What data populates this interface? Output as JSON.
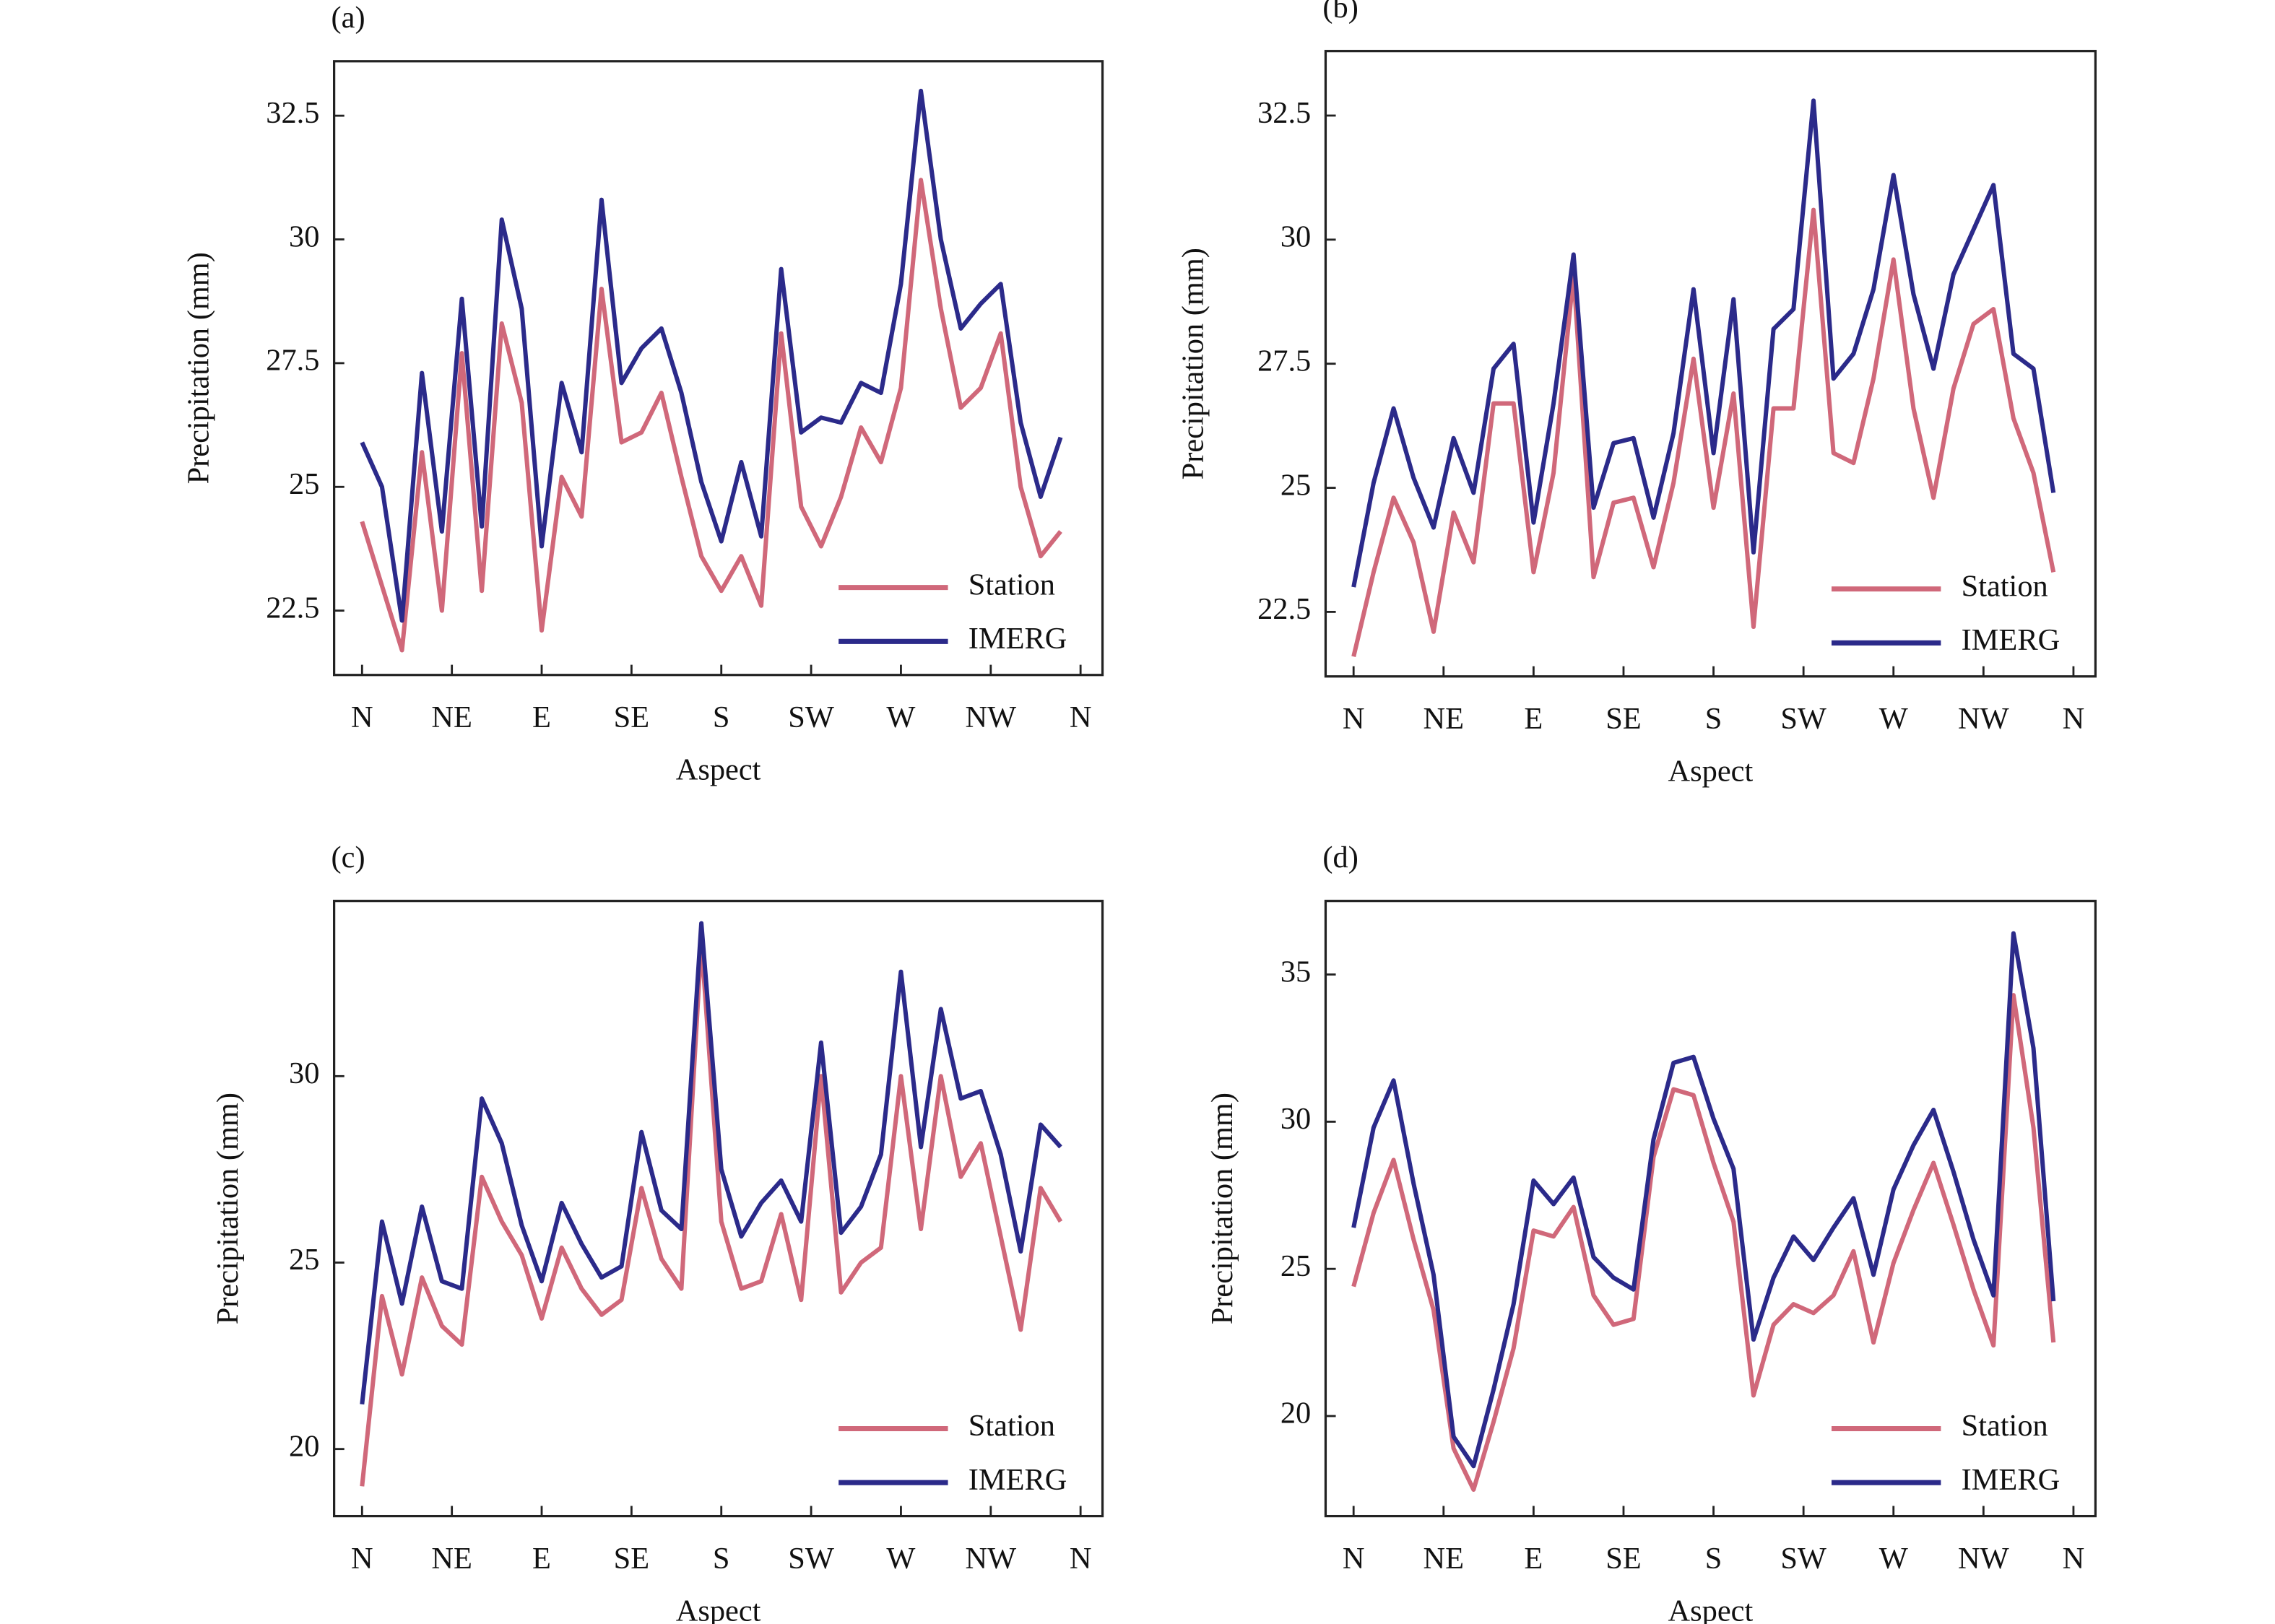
{
  "chart_data": [
    {
      "type": "line",
      "title": "(a)",
      "x_label": "Aspect",
      "y_label": "Precipitation (mm)",
      "legend": "lower right",
      "x": [
        0,
        10,
        20,
        30,
        40,
        50,
        60,
        70,
        80,
        90,
        100,
        110,
        120,
        130,
        140,
        150,
        160,
        170,
        180,
        190,
        200,
        210,
        220,
        230,
        240,
        250,
        260,
        270,
        280,
        290,
        300,
        310,
        320,
        330,
        340,
        350
      ],
      "xlim": [
        -14,
        371
      ],
      "xticks": [
        {
          "value": 0,
          "label": "N"
        },
        {
          "value": 45,
          "label": "NE"
        },
        {
          "value": 90,
          "label": "E"
        },
        {
          "value": 135,
          "label": "SE"
        },
        {
          "value": 180,
          "label": "S"
        },
        {
          "value": 225,
          "label": "SW"
        },
        {
          "value": 270,
          "label": "W"
        },
        {
          "value": 315,
          "label": "NW"
        },
        {
          "value": 360,
          "label": "N"
        }
      ],
      "ylim": [
        21.2,
        33.6
      ],
      "yticks": [
        22.5,
        25.0,
        27.5,
        30.0,
        32.5
      ],
      "series": [
        {
          "name": "Station",
          "color": "#d0687a",
          "values": [
            24.3,
            23.0,
            21.7,
            25.7,
            22.5,
            27.7,
            22.9,
            28.3,
            26.7,
            22.1,
            25.2,
            24.4,
            29.0,
            25.9,
            26.1,
            26.9,
            25.2,
            23.6,
            22.9,
            23.6,
            22.6,
            28.1,
            24.6,
            23.8,
            24.8,
            26.2,
            25.5,
            27.0,
            31.2,
            28.6,
            26.6,
            27.0,
            28.1,
            25.0,
            23.6,
            24.1
          ]
        },
        {
          "name": "IMERG",
          "color": "#2b2a8a",
          "values": [
            25.9,
            25.0,
            22.3,
            27.3,
            24.1,
            28.8,
            24.2,
            30.4,
            28.6,
            23.8,
            27.1,
            25.7,
            30.8,
            27.1,
            27.8,
            28.2,
            26.9,
            25.1,
            23.9,
            25.5,
            24.0,
            29.4,
            26.1,
            26.4,
            26.3,
            27.1,
            26.9,
            29.1,
            33.0,
            30.0,
            28.2,
            28.7,
            29.1,
            26.3,
            24.8,
            26.0
          ]
        }
      ]
    },
    {
      "type": "line",
      "title": "(b)",
      "x_label": "Aspect",
      "y_label": "Precipitation (mm)",
      "legend": "lower right",
      "x": [
        0,
        10,
        20,
        30,
        40,
        50,
        60,
        70,
        80,
        90,
        100,
        110,
        120,
        130,
        140,
        150,
        160,
        170,
        180,
        190,
        200,
        210,
        220,
        230,
        240,
        250,
        260,
        270,
        280,
        290,
        300,
        310,
        320,
        330,
        340,
        350
      ],
      "xlim": [
        -14,
        371
      ],
      "xticks": [
        {
          "value": 0,
          "label": "N"
        },
        {
          "value": 45,
          "label": "NE"
        },
        {
          "value": 90,
          "label": "E"
        },
        {
          "value": 135,
          "label": "SE"
        },
        {
          "value": 180,
          "label": "S"
        },
        {
          "value": 225,
          "label": "SW"
        },
        {
          "value": 270,
          "label": "W"
        },
        {
          "value": 315,
          "label": "NW"
        },
        {
          "value": 360,
          "label": "N"
        }
      ],
      "ylim": [
        21.2,
        33.8
      ],
      "yticks": [
        22.5,
        25.0,
        27.5,
        30.0,
        32.5
      ],
      "series": [
        {
          "name": "Station",
          "color": "#d0687a",
          "values": [
            21.6,
            23.3,
            24.8,
            23.9,
            22.1,
            24.5,
            23.5,
            26.7,
            26.7,
            23.3,
            25.3,
            29.3,
            23.2,
            24.7,
            24.8,
            23.4,
            25.1,
            27.6,
            24.6,
            26.9,
            22.2,
            26.6,
            26.6,
            30.6,
            25.7,
            25.5,
            27.2,
            29.6,
            26.6,
            24.8,
            27.0,
            28.3,
            28.6,
            26.4,
            25.3,
            23.3
          ]
        },
        {
          "name": "IMERG",
          "color": "#2b2a8a",
          "values": [
            23.0,
            25.1,
            26.6,
            25.2,
            24.2,
            26.0,
            24.9,
            27.4,
            27.9,
            24.3,
            26.7,
            29.7,
            24.6,
            25.9,
            26.0,
            24.4,
            26.1,
            29.0,
            25.7,
            28.8,
            23.7,
            28.2,
            28.6,
            32.8,
            27.2,
            27.7,
            29.0,
            31.3,
            28.9,
            27.4,
            29.3,
            30.2,
            31.1,
            27.7,
            27.4,
            24.9
          ]
        }
      ]
    },
    {
      "type": "line",
      "title": "(c)",
      "x_label": "Aspect",
      "y_label": "Precipitation (mm)",
      "legend": "lower right",
      "x": [
        0,
        10,
        20,
        30,
        40,
        50,
        60,
        70,
        80,
        90,
        100,
        110,
        120,
        130,
        140,
        150,
        160,
        170,
        180,
        190,
        200,
        210,
        220,
        230,
        240,
        250,
        260,
        270,
        280,
        290,
        300,
        310,
        320,
        330,
        340,
        350
      ],
      "xlim": [
        -14,
        371
      ],
      "xticks": [
        {
          "value": 0,
          "label": "N"
        },
        {
          "value": 45,
          "label": "NE"
        },
        {
          "value": 90,
          "label": "E"
        },
        {
          "value": 135,
          "label": "SE"
        },
        {
          "value": 180,
          "label": "S"
        },
        {
          "value": 225,
          "label": "SW"
        },
        {
          "value": 270,
          "label": "W"
        },
        {
          "value": 315,
          "label": "NW"
        },
        {
          "value": 360,
          "label": "N"
        }
      ],
      "ylim": [
        18.2,
        34.7
      ],
      "yticks": [
        20,
        25,
        30
      ],
      "series": [
        {
          "name": "Station",
          "color": "#d0687a",
          "values": [
            19.0,
            24.1,
            22.0,
            24.6,
            23.3,
            22.8,
            27.3,
            26.1,
            25.2,
            23.5,
            25.4,
            24.3,
            23.6,
            24.0,
            27.0,
            25.1,
            24.3,
            33.6,
            26.1,
            24.3,
            24.5,
            26.3,
            24.0,
            30.0,
            24.2,
            25.0,
            25.4,
            30.0,
            25.9,
            30.0,
            27.3,
            28.2,
            25.7,
            23.2,
            27.0,
            26.1
          ]
        },
        {
          "name": "IMERG",
          "color": "#2b2a8a",
          "values": [
            21.2,
            26.1,
            23.9,
            26.5,
            24.5,
            24.3,
            29.4,
            28.2,
            26.0,
            24.5,
            26.6,
            25.5,
            24.6,
            24.9,
            28.5,
            26.4,
            25.9,
            34.1,
            27.5,
            25.7,
            26.6,
            27.2,
            26.1,
            30.9,
            25.8,
            26.5,
            27.9,
            32.8,
            28.1,
            31.8,
            29.4,
            29.6,
            27.9,
            25.3,
            28.7,
            28.1
          ]
        }
      ]
    },
    {
      "type": "line",
      "title": "(d)",
      "x_label": "Aspect",
      "y_label": "Precipitation (mm)",
      "legend": "lower right",
      "x": [
        0,
        10,
        20,
        30,
        40,
        50,
        60,
        70,
        80,
        90,
        100,
        110,
        120,
        130,
        140,
        150,
        160,
        170,
        180,
        190,
        200,
        210,
        220,
        230,
        240,
        250,
        260,
        270,
        280,
        290,
        300,
        310,
        320,
        330,
        340,
        350
      ],
      "xlim": [
        -14,
        371
      ],
      "xticks": [
        {
          "value": 0,
          "label": "N"
        },
        {
          "value": 45,
          "label": "NE"
        },
        {
          "value": 90,
          "label": "E"
        },
        {
          "value": 135,
          "label": "SE"
        },
        {
          "value": 180,
          "label": "S"
        },
        {
          "value": 225,
          "label": "SW"
        },
        {
          "value": 270,
          "label": "W"
        },
        {
          "value": 315,
          "label": "NW"
        },
        {
          "value": 360,
          "label": "N"
        }
      ],
      "ylim": [
        16.6,
        37.5
      ],
      "yticks": [
        20,
        25,
        30,
        35
      ],
      "series": [
        {
          "name": "Station",
          "color": "#d0687a",
          "values": [
            24.4,
            26.9,
            28.7,
            26.0,
            23.6,
            18.9,
            17.5,
            19.8,
            22.3,
            26.3,
            26.1,
            27.1,
            24.1,
            23.1,
            23.3,
            28.8,
            31.1,
            30.9,
            28.6,
            26.6,
            20.7,
            23.1,
            23.8,
            23.5,
            24.1,
            25.6,
            22.5,
            25.2,
            27.0,
            28.6,
            26.5,
            24.3,
            22.4,
            34.3,
            29.8,
            22.5
          ]
        },
        {
          "name": "IMERG",
          "color": "#2b2a8a",
          "values": [
            26.4,
            29.8,
            31.4,
            27.9,
            24.8,
            19.3,
            18.3,
            20.9,
            23.8,
            28.0,
            27.2,
            28.1,
            25.4,
            24.7,
            24.3,
            29.4,
            32.0,
            32.2,
            30.1,
            28.4,
            22.6,
            24.7,
            26.1,
            25.3,
            26.4,
            27.4,
            24.8,
            27.7,
            29.2,
            30.4,
            28.3,
            26.0,
            24.1,
            36.4,
            32.5,
            23.9
          ]
        }
      ]
    }
  ]
}
